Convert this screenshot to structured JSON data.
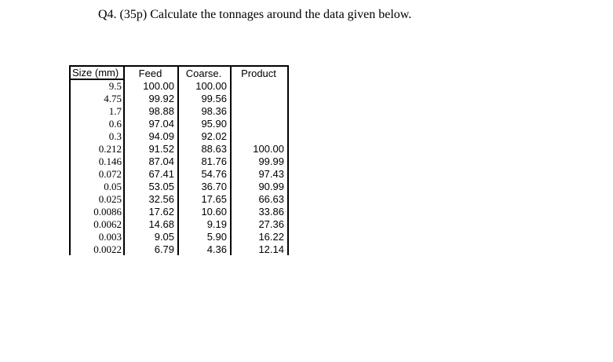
{
  "document": {
    "question": "Q4. (35p) Calculate the tonnages around the data given below."
  },
  "table": {
    "headers": [
      "Size (mm)",
      "Feed",
      "Coarse.",
      "Product"
    ],
    "rows": [
      {
        "size": "9.5",
        "feed": "100.00",
        "coarse": "100.00",
        "product": ""
      },
      {
        "size": "4.75",
        "feed": "99.92",
        "coarse": "99.56",
        "product": ""
      },
      {
        "size": "1.7",
        "feed": "98.88",
        "coarse": "98.36",
        "product": ""
      },
      {
        "size": "0.6",
        "feed": "97.04",
        "coarse": "95.90",
        "product": ""
      },
      {
        "size": "0.3",
        "feed": "94.09",
        "coarse": "92.02",
        "product": ""
      },
      {
        "size": "0.212",
        "feed": "91.52",
        "coarse": "88.63",
        "product": "100.00"
      },
      {
        "size": "0.146",
        "feed": "87.04",
        "coarse": "81.76",
        "product": "99.99"
      },
      {
        "size": "0.072",
        "feed": "67.41",
        "coarse": "54.76",
        "product": "97.43"
      },
      {
        "size": "0.05",
        "feed": "53.05",
        "coarse": "36.70",
        "product": "90.99"
      },
      {
        "size": "0.025",
        "feed": "32.56",
        "coarse": "17.65",
        "product": "66.63"
      },
      {
        "size": "0.0086",
        "feed": "17.62",
        "coarse": "10.60",
        "product": "33.86"
      },
      {
        "size": "0.0062",
        "feed": "14.68",
        "coarse": "9.19",
        "product": "27.36"
      },
      {
        "size": "0.003",
        "feed": "9.05",
        "coarse": "5.90",
        "product": "16.22"
      },
      {
        "size": "0.0022",
        "feed": "6.79",
        "coarse": "4.36",
        "product": "12.14"
      }
    ]
  },
  "colors": {
    "background": "#ffffff",
    "text": "#000000",
    "border": "#000000"
  }
}
